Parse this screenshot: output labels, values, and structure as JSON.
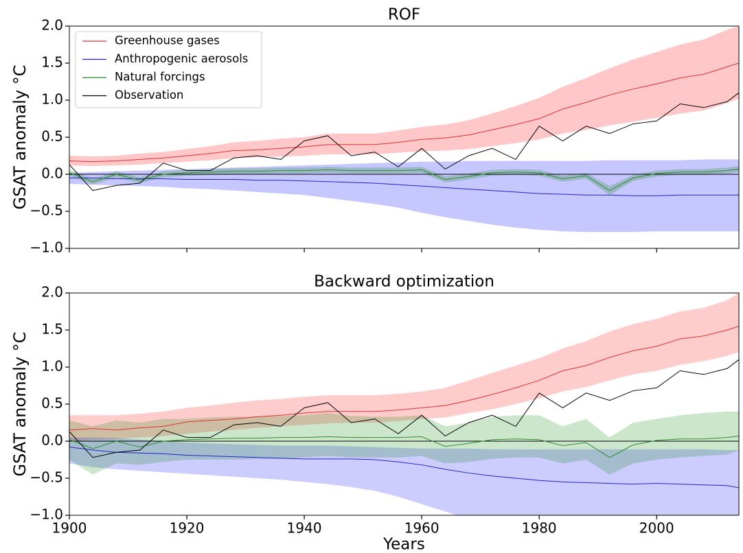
{
  "chart_data": [
    {
      "type": "line",
      "title": "ROF",
      "ylabel": "GSAT anomaly °C",
      "x": [
        1900,
        1904,
        1908,
        1912,
        1916,
        1920,
        1924,
        1928,
        1932,
        1936,
        1940,
        1944,
        1948,
        1952,
        1956,
        1960,
        1964,
        1968,
        1972,
        1976,
        1980,
        1984,
        1988,
        1992,
        1996,
        2000,
        2004,
        2008,
        2012,
        2014
      ],
      "xlim": [
        1900,
        2014
      ],
      "xticks": [
        1900,
        1920,
        1940,
        1960,
        1980,
        2000
      ],
      "show_xtick_labels": false,
      "ylim": [
        -1,
        2
      ],
      "yticks": [
        {
          "value": -1,
          "label": "−1.0"
        },
        {
          "value": -0.5,
          "label": "−0.5"
        },
        {
          "value": 0,
          "label": "0.0"
        },
        {
          "value": 0.5,
          "label": "0.5"
        },
        {
          "value": 1,
          "label": "1.0"
        },
        {
          "value": 1.5,
          "label": "1.5"
        },
        {
          "value": 2,
          "label": "2.0"
        }
      ],
      "zero_line": true,
      "legend": "upper left",
      "band_opacity": 0.22,
      "series": [
        {
          "name": "Greenhouse gases",
          "color": "#e03131",
          "values": [
            0.18,
            0.17,
            0.18,
            0.2,
            0.22,
            0.25,
            0.28,
            0.32,
            0.33,
            0.35,
            0.37,
            0.4,
            0.4,
            0.4,
            0.43,
            0.47,
            0.49,
            0.53,
            0.6,
            0.67,
            0.75,
            0.88,
            0.97,
            1.07,
            1.15,
            1.22,
            1.3,
            1.35,
            1.45,
            1.5
          ],
          "band": {
            "color": "#ff0000",
            "lower": [
              0.12,
              0.11,
              0.12,
              0.13,
              0.15,
              0.17,
              0.19,
              0.22,
              0.23,
              0.24,
              0.25,
              0.27,
              0.27,
              0.27,
              0.29,
              0.31,
              0.32,
              0.34,
              0.38,
              0.42,
              0.47,
              0.55,
              0.6,
              0.66,
              0.71,
              0.76,
              0.82,
              0.86,
              0.96,
              1.02
            ],
            "upper": [
              0.25,
              0.24,
              0.25,
              0.28,
              0.3,
              0.34,
              0.38,
              0.43,
              0.45,
              0.48,
              0.5,
              0.55,
              0.55,
              0.55,
              0.59,
              0.64,
              0.67,
              0.73,
              0.82,
              0.92,
              1.03,
              1.18,
              1.3,
              1.43,
              1.55,
              1.65,
              1.75,
              1.82,
              1.95,
              2.0
            ]
          }
        },
        {
          "name": "Anthropogenic aerosols",
          "color": "#2323c8",
          "values": [
            -0.05,
            -0.05,
            -0.06,
            -0.06,
            -0.06,
            -0.07,
            -0.07,
            -0.07,
            -0.08,
            -0.08,
            -0.09,
            -0.1,
            -0.11,
            -0.12,
            -0.14,
            -0.16,
            -0.18,
            -0.2,
            -0.22,
            -0.24,
            -0.26,
            -0.27,
            -0.28,
            -0.28,
            -0.29,
            -0.29,
            -0.28,
            -0.28,
            -0.28,
            -0.28
          ],
          "band": {
            "color": "#0000ff",
            "lower": [
              -0.13,
              -0.14,
              -0.15,
              -0.16,
              -0.17,
              -0.19,
              -0.2,
              -0.22,
              -0.24,
              -0.26,
              -0.28,
              -0.32,
              -0.36,
              -0.4,
              -0.45,
              -0.52,
              -0.58,
              -0.63,
              -0.68,
              -0.72,
              -0.75,
              -0.77,
              -0.78,
              -0.78,
              -0.78,
              -0.77,
              -0.77,
              -0.77,
              -0.77,
              -0.77
            ],
            "upper": [
              0.02,
              0.03,
              0.04,
              0.05,
              0.06,
              0.07,
              0.08,
              0.09,
              0.1,
              0.11,
              0.12,
              0.13,
              0.14,
              0.15,
              0.16,
              0.17,
              0.17,
              0.18,
              0.18,
              0.18,
              0.18,
              0.18,
              0.18,
              0.19,
              0.19,
              0.19,
              0.19,
              0.2,
              0.2,
              0.2
            ]
          }
        },
        {
          "name": "Natural forcings",
          "color": "#2e8b2e",
          "values": [
            0.02,
            -0.1,
            0,
            -0.08,
            0,
            0.02,
            0.03,
            0.04,
            0.04,
            0.05,
            0.05,
            0.06,
            0.05,
            0.05,
            0.05,
            0.06,
            -0.07,
            -0.03,
            0.02,
            0.03,
            0.02,
            -0.06,
            -0.02,
            -0.22,
            -0.05,
            0.01,
            0.03,
            0.03,
            0.05,
            0.07
          ],
          "band": {
            "color": "#008000",
            "lower": [
              -0.02,
              -0.14,
              -0.04,
              -0.12,
              -0.04,
              -0.02,
              -0.01,
              0,
              0,
              0.01,
              0.01,
              0.02,
              0.01,
              0.01,
              0.01,
              0.02,
              -0.11,
              -0.07,
              -0.02,
              -0.01,
              -0.02,
              -0.1,
              -0.06,
              -0.28,
              -0.09,
              -0.03,
              -0.01,
              -0.01,
              0.01,
              0.03
            ],
            "upper": [
              0.06,
              -0.06,
              0.04,
              -0.04,
              0.04,
              0.06,
              0.07,
              0.08,
              0.08,
              0.09,
              0.09,
              0.1,
              0.09,
              0.09,
              0.09,
              0.1,
              -0.03,
              0.01,
              0.06,
              0.07,
              0.06,
              -0.02,
              0.02,
              -0.16,
              -0.01,
              0.05,
              0.07,
              0.07,
              0.09,
              0.11
            ]
          }
        },
        {
          "name": "Observation",
          "color": "#000000",
          "values": [
            0.13,
            -0.22,
            -0.15,
            -0.12,
            0.15,
            0.05,
            0.05,
            0.22,
            0.25,
            0.2,
            0.45,
            0.52,
            0.25,
            0.3,
            0.1,
            0.35,
            0.07,
            0.25,
            0.35,
            0.2,
            0.65,
            0.45,
            0.65,
            0.55,
            0.68,
            0.72,
            0.95,
            0.9,
            0.98,
            1.1
          ]
        }
      ]
    },
    {
      "type": "line",
      "title": "Backward optimization",
      "ylabel": "GSAT anomaly °C",
      "xlabel": "Years",
      "x": [
        1900,
        1904,
        1908,
        1912,
        1916,
        1920,
        1924,
        1928,
        1932,
        1936,
        1940,
        1944,
        1948,
        1952,
        1956,
        1960,
        1964,
        1968,
        1972,
        1976,
        1980,
        1984,
        1988,
        1992,
        1996,
        2000,
        2004,
        2008,
        2012,
        2014
      ],
      "xlim": [
        1900,
        2014
      ],
      "xticks": [
        1900,
        1920,
        1940,
        1960,
        1980,
        2000
      ],
      "show_xtick_labels": true,
      "ylim": [
        -1,
        2
      ],
      "yticks": [
        {
          "value": -1,
          "label": "−1.0"
        },
        {
          "value": -0.5,
          "label": "−0.5"
        },
        {
          "value": 0,
          "label": "0.0"
        },
        {
          "value": 0.5,
          "label": "0.5"
        },
        {
          "value": 1,
          "label": "1.0"
        },
        {
          "value": 1.5,
          "label": "1.5"
        },
        {
          "value": 2,
          "label": "2.0"
        }
      ],
      "zero_line": true,
      "band_opacity": 0.2,
      "series": [
        {
          "color": "#e03131",
          "values": [
            0.15,
            0.17,
            0.15,
            0.18,
            0.2,
            0.26,
            0.28,
            0.3,
            0.33,
            0.35,
            0.38,
            0.4,
            0.4,
            0.4,
            0.42,
            0.45,
            0.48,
            0.55,
            0.63,
            0.72,
            0.82,
            0.95,
            1.02,
            1.13,
            1.22,
            1.28,
            1.38,
            1.42,
            1.5,
            1.55
          ],
          "band": {
            "color": "#ff0000",
            "lower": [
              0,
              0.02,
              0.03,
              0.05,
              0.07,
              0.1,
              0.13,
              0.15,
              0.18,
              0.2,
              0.22,
              0.24,
              0.25,
              0.25,
              0.27,
              0.3,
              0.32,
              0.38,
              0.43,
              0.5,
              0.58,
              0.67,
              0.73,
              0.82,
              0.9,
              0.95,
              1.03,
              1.08,
              1.15,
              1.2
            ],
            "upper": [
              0.35,
              0.35,
              0.35,
              0.37,
              0.4,
              0.45,
              0.48,
              0.52,
              0.55,
              0.57,
              0.6,
              0.62,
              0.62,
              0.62,
              0.64,
              0.67,
              0.72,
              0.82,
              0.92,
              1.02,
              1.12,
              1.25,
              1.35,
              1.48,
              1.58,
              1.65,
              1.75,
              1.8,
              1.9,
              2.0
            ]
          }
        },
        {
          "color": "#2323c8",
          "values": [
            -0.08,
            -0.12,
            -0.15,
            -0.16,
            -0.17,
            -0.19,
            -0.2,
            -0.21,
            -0.22,
            -0.23,
            -0.24,
            -0.24,
            -0.24,
            -0.25,
            -0.28,
            -0.32,
            -0.38,
            -0.43,
            -0.47,
            -0.5,
            -0.53,
            -0.55,
            -0.56,
            -0.57,
            -0.58,
            -0.57,
            -0.58,
            -0.59,
            -0.6,
            -0.63
          ],
          "band": {
            "color": "#0000ff",
            "lower": [
              -0.3,
              -0.35,
              -0.38,
              -0.4,
              -0.42,
              -0.44,
              -0.46,
              -0.48,
              -0.5,
              -0.52,
              -0.55,
              -0.58,
              -0.62,
              -0.67,
              -0.75,
              -0.85,
              -0.95,
              -1.05,
              -1.15,
              -1.25,
              -1.3,
              -1.35,
              -1.35,
              -1.35,
              -1.35,
              -1.35,
              -1.35,
              -1.35,
              -1.35,
              -1.35
            ],
            "upper": [
              0.05,
              0.05,
              0.04,
              0.02,
              0,
              -0.02,
              -0.03,
              -0.04,
              -0.05,
              -0.06,
              -0.06,
              -0.06,
              -0.07,
              -0.08,
              -0.09,
              -0.1,
              -0.1,
              -0.1,
              -0.11,
              -0.11,
              -0.11,
              -0.11,
              -0.11,
              -0.11,
              -0.11,
              -0.11,
              -0.11,
              -0.11,
              -0.12,
              -0.12
            ]
          }
        },
        {
          "color": "#2e8b2e",
          "values": [
            0.02,
            -0.1,
            0,
            -0.08,
            0,
            0.02,
            0.03,
            0.04,
            0.04,
            0.05,
            0.05,
            0.06,
            0.05,
            0.05,
            0.05,
            0.06,
            -0.07,
            -0.03,
            0.02,
            0.03,
            0.02,
            -0.06,
            -0.02,
            -0.22,
            -0.05,
            0.01,
            0.03,
            0.03,
            0.05,
            0.07
          ],
          "band": {
            "color": "#008000",
            "lower": [
              -0.25,
              -0.45,
              -0.3,
              -0.32,
              -0.28,
              -0.25,
              -0.25,
              -0.25,
              -0.24,
              -0.24,
              -0.22,
              -0.2,
              -0.22,
              -0.22,
              -0.22,
              -0.2,
              -0.3,
              -0.28,
              -0.24,
              -0.22,
              -0.22,
              -0.3,
              -0.25,
              -0.45,
              -0.3,
              -0.25,
              -0.22,
              -0.2,
              -0.18,
              -0.12
            ],
            "upper": [
              0.28,
              0.2,
              0.28,
              0.25,
              0.3,
              0.3,
              0.32,
              0.33,
              0.33,
              0.34,
              0.35,
              0.38,
              0.34,
              0.33,
              0.33,
              0.35,
              0.2,
              0.25,
              0.33,
              0.35,
              0.35,
              0.2,
              0.3,
              0.05,
              0.25,
              0.3,
              0.35,
              0.38,
              0.4,
              0.4
            ]
          }
        },
        {
          "color": "#000000",
          "values": [
            0.13,
            -0.22,
            -0.15,
            -0.12,
            0.15,
            0.05,
            0.05,
            0.22,
            0.25,
            0.2,
            0.45,
            0.52,
            0.25,
            0.3,
            0.1,
            0.35,
            0.07,
            0.25,
            0.35,
            0.2,
            0.65,
            0.45,
            0.65,
            0.55,
            0.68,
            0.72,
            0.95,
            0.9,
            0.98,
            1.1
          ]
        }
      ]
    }
  ]
}
